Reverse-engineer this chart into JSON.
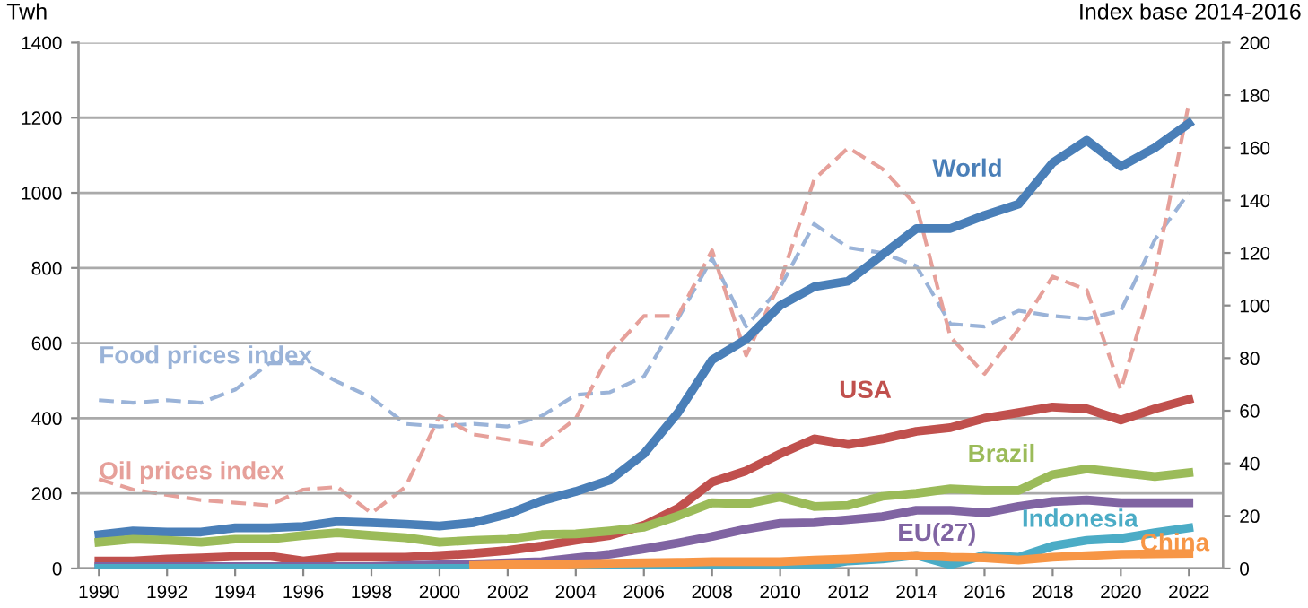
{
  "chart_data": {
    "type": "line",
    "xlabel": null,
    "ylabel": "Twh",
    "y2label": "Index base 2014-2016",
    "x": [
      1990,
      1991,
      1992,
      1993,
      1994,
      1995,
      1996,
      1997,
      1998,
      1999,
      2000,
      2001,
      2002,
      2003,
      2004,
      2005,
      2006,
      2007,
      2008,
      2009,
      2010,
      2011,
      2012,
      2013,
      2014,
      2015,
      2016,
      2017,
      2018,
      2019,
      2020,
      2021,
      2022
    ],
    "series": [
      {
        "name": "World",
        "color": "#4a7fb8",
        "values": [
          90,
          100,
          97,
          97,
          108,
          108,
          112,
          125,
          122,
          118,
          113,
          122,
          145,
          180,
          205,
          235,
          305,
          415,
          555,
          610,
          700,
          750,
          765,
          835,
          905,
          905,
          940,
          970,
          1080,
          1140,
          1070,
          1120,
          1185
        ]
      },
      {
        "name": "USA",
        "color": "#c0504d",
        "values": [
          20,
          20,
          25,
          28,
          32,
          33,
          20,
          30,
          30,
          30,
          35,
          40,
          48,
          60,
          75,
          88,
          115,
          160,
          230,
          260,
          305,
          345,
          330,
          345,
          365,
          375,
          400,
          415,
          430,
          425,
          395,
          425,
          450
        ]
      },
      {
        "name": "Brazil",
        "color": "#9bbb59",
        "values": [
          70,
          78,
          75,
          70,
          78,
          78,
          88,
          95,
          88,
          82,
          70,
          75,
          78,
          90,
          92,
          100,
          110,
          140,
          175,
          172,
          190,
          165,
          168,
          192,
          200,
          212,
          208,
          208,
          250,
          265,
          255,
          245,
          255
        ]
      },
      {
        "name": "EU(27)",
        "color": "#8064a2",
        "values": [
          5,
          5,
          5,
          5,
          5,
          5,
          5,
          5,
          5,
          8,
          10,
          12,
          15,
          18,
          28,
          38,
          52,
          68,
          85,
          105,
          120,
          122,
          130,
          138,
          155,
          155,
          148,
          165,
          178,
          182,
          175,
          175,
          175
        ]
      },
      {
        "name": "Indonesia",
        "color": "#4bacc6",
        "values": [
          0,
          0,
          0,
          0,
          0,
          0,
          0,
          0,
          0,
          0,
          0,
          0,
          0,
          0,
          0,
          0,
          0,
          0,
          0,
          0,
          2,
          5,
          20,
          25,
          35,
          10,
          35,
          30,
          60,
          75,
          80,
          95,
          108
        ]
      },
      {
        "name": "China",
        "color": "#f79646",
        "values": [
          null,
          null,
          null,
          null,
          null,
          null,
          null,
          null,
          null,
          null,
          null,
          8,
          10,
          10,
          12,
          14,
          15,
          16,
          18,
          18,
          18,
          22,
          25,
          30,
          35,
          30,
          28,
          22,
          30,
          34,
          38,
          39,
          40
        ]
      },
      {
        "name": "Food prices index",
        "color": "#9ab3d8",
        "axis": "y2",
        "line_style": "dashed",
        "values": [
          64,
          63,
          64,
          63,
          68,
          78,
          78,
          71,
          65,
          55,
          54,
          55,
          54,
          58,
          66,
          67,
          73,
          95,
          118,
          92,
          107,
          131,
          122,
          120,
          115,
          93,
          92,
          98,
          96,
          95,
          98,
          125,
          143
        ]
      },
      {
        "name": "Oil prices index",
        "color": "#e6a09a",
        "axis": "y2",
        "line_style": "dashed",
        "values": [
          34,
          30,
          28,
          26,
          25,
          24,
          30,
          31,
          21,
          31,
          58,
          51,
          49,
          47,
          57,
          82,
          96,
          96,
          121,
          81,
          109,
          148,
          160,
          152,
          138,
          88,
          74,
          91,
          111,
          106,
          68,
          112,
          177
        ]
      }
    ],
    "xlim": [
      1989.4,
      2023
    ],
    "xticks": [
      1990,
      1992,
      1994,
      1996,
      1998,
      2000,
      2002,
      2004,
      2006,
      2008,
      2010,
      2012,
      2014,
      2016,
      2018,
      2020,
      2022
    ],
    "ylim": [
      0,
      1400
    ],
    "yticks": [
      0,
      200,
      400,
      600,
      800,
      1000,
      1200,
      1400
    ],
    "y2lim": [
      0,
      200
    ],
    "y2ticks": [
      0,
      20,
      40,
      60,
      80,
      100,
      120,
      140,
      160,
      180,
      200
    ],
    "grid": "y",
    "legend": false,
    "line_style": "solid",
    "marker": "none"
  }
}
